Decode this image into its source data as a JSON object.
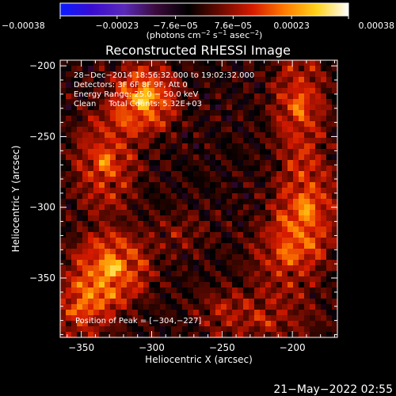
{
  "chart_data": {
    "type": "heatmap",
    "title": "Reconstructed RHESSI Image",
    "xlabel": "Heliocentric X (arcsec)",
    "ylabel": "Heliocentric Y (arcsec)",
    "xlim": [
      -365,
      -168
    ],
    "ylim": [
      -392,
      -196
    ],
    "x_ticks": [
      -350,
      -300,
      -250,
      -200
    ],
    "x_tick_labels": [
      "−350",
      "−300",
      "−250",
      "−200"
    ],
    "y_ticks": [
      -200,
      -250,
      -300,
      -350
    ],
    "y_tick_labels": [
      "−200",
      "−250",
      "−300",
      "−350"
    ],
    "colorbar": {
      "min": -0.00038,
      "max": 0.00038,
      "ticks": [
        -0.00038,
        -0.00023,
        -7.6e-05,
        7.6e-05,
        0.00023,
        0.00038
      ],
      "tick_labels": [
        "−0.00038",
        "−0.00023",
        "−7.6e−05",
        "7.6e−05",
        "0.00023",
        "0.00038"
      ],
      "units_main": "(photons cm",
      "units_exp1": "−2",
      "units_mid": " s",
      "units_exp2": "−1",
      "units_end": " asec",
      "units_exp3": "−2",
      "units_close": ")",
      "colormap": [
        "#0a1cff",
        "#3a0cd0",
        "#5a2ab8",
        "#3a0a3a",
        "#000000",
        "#6a0a00",
        "#d41a00",
        "#ff7a00",
        "#ffd21a",
        "#ffffff"
      ]
    },
    "annotations": [
      "28−Dec−2014 18:56:32.000 to 19:02:32.000",
      "Detectors: 3F 6F 8F 9F, Att 0",
      "Energy Range: 25.0 − 50.0 keV",
      "Clean     Total Counts: 5.32E+03"
    ],
    "peak_label": "Position of Peak = [−304,−227]",
    "peak": [
      -304,
      -227
    ],
    "sources": [
      {
        "x": -305,
        "y": -223,
        "sx": 14,
        "sy": 15,
        "amp": 0.00036
      },
      {
        "x": -333,
        "y": -268,
        "sx": 14,
        "sy": 22,
        "amp": 0.00024
      },
      {
        "x": -329,
        "y": -343,
        "sx": 17,
        "sy": 16,
        "amp": 0.00033
      },
      {
        "x": -350,
        "y": -372,
        "sx": 15,
        "sy": 13,
        "amp": 0.00022
      },
      {
        "x": -195,
        "y": -228,
        "sx": 12,
        "sy": 24,
        "amp": 0.00024
      },
      {
        "x": -190,
        "y": -300,
        "sx": 14,
        "sy": 22,
        "amp": 0.00026
      },
      {
        "x": -205,
        "y": -335,
        "sx": 16,
        "sy": 18,
        "amp": 0.00018
      },
      {
        "x": -220,
        "y": -380,
        "sx": 24,
        "sy": 12,
        "amp": 0.00013
      },
      {
        "x": -280,
        "y": -318,
        "sx": 14,
        "sy": 10,
        "amp": 9e-05
      },
      {
        "x": -250,
        "y": -370,
        "sx": 14,
        "sy": 10,
        "amp": 8e-05
      }
    ]
  },
  "timestamp": "21−May−2022 02:55"
}
